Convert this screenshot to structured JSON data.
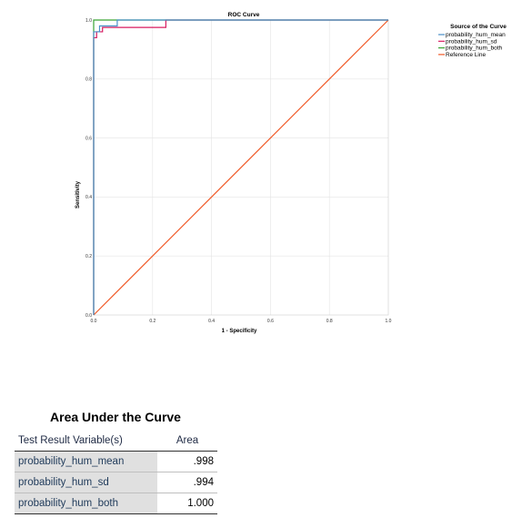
{
  "chart_data": {
    "type": "line",
    "title": "ROC Curve",
    "xlabel": "1 - Specificity",
    "ylabel": "Sensitivity",
    "xlim": [
      0.0,
      1.0
    ],
    "ylim": [
      0.0,
      1.0
    ],
    "x_ticks": [
      "0.0",
      "0.2",
      "0.4",
      "0.6",
      "0.8",
      "1.0"
    ],
    "y_ticks": [
      "0.0",
      "0.2",
      "0.4",
      "0.6",
      "0.8",
      "1.0"
    ],
    "grid": true,
    "legend_title": "Source of the Curve",
    "legend_position": "right",
    "series": [
      {
        "name": "probability_hum_mean",
        "color": "#4a90c8",
        "points": [
          [
            0,
            0
          ],
          [
            0,
            0.96
          ],
          [
            0.02,
            0.96
          ],
          [
            0.02,
            0.98
          ],
          [
            0.08,
            0.98
          ],
          [
            0.08,
            1.0
          ],
          [
            1,
            1
          ]
        ]
      },
      {
        "name": "probability_hum_sd",
        "color": "#d81b60",
        "points": [
          [
            0,
            0
          ],
          [
            0,
            0.94
          ],
          [
            0.01,
            0.94
          ],
          [
            0.01,
            0.96
          ],
          [
            0.03,
            0.96
          ],
          [
            0.03,
            0.975
          ],
          [
            0.245,
            0.975
          ],
          [
            0.245,
            1.0
          ],
          [
            1,
            1
          ]
        ]
      },
      {
        "name": "probability_hum_both",
        "color": "#3aa535",
        "points": [
          [
            0,
            0
          ],
          [
            0,
            1.0
          ],
          [
            1,
            1.0
          ]
        ]
      },
      {
        "name": "Reference Line",
        "color": "#f05a28",
        "points": [
          [
            0,
            0
          ],
          [
            1,
            1
          ]
        ]
      }
    ]
  },
  "auc_table": {
    "title": "Area Under the Curve",
    "col_variable": "Test Result Variable(s)",
    "col_area": "Area",
    "rows": [
      {
        "variable": "probability_hum_mean",
        "area": ".998"
      },
      {
        "variable": "probability_hum_sd",
        "area": ".994"
      },
      {
        "variable": "probability_hum_both",
        "area": "1.000"
      }
    ]
  }
}
